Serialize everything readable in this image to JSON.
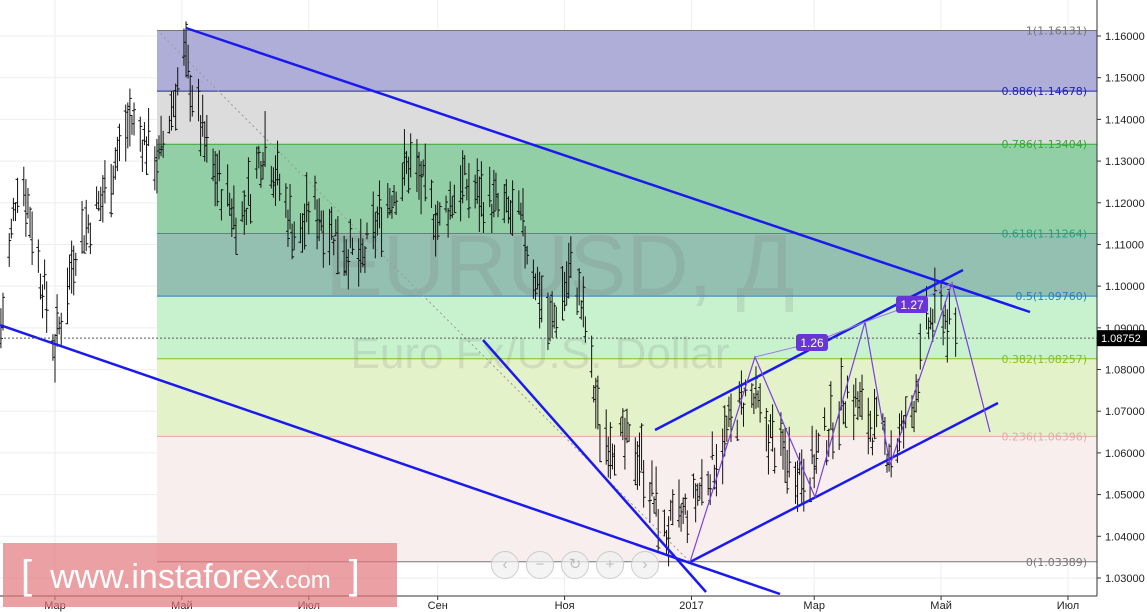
{
  "chart_data": {
    "type": "candlestick",
    "symbol_title": "EURUSD, Д",
    "symbol_subtitle": "Euro Fx/U.S. Dollar",
    "ylim": [
      1.025,
      1.168
    ],
    "y_ticks": [
      "1.16000",
      "1.15000",
      "1.14000",
      "1.13000",
      "1.12000",
      "1.11000",
      "1.10000",
      "1.09000",
      "1.08000",
      "1.07000",
      "1.06000",
      "1.05000",
      "1.04000",
      "1.03000"
    ],
    "x_ticks": [
      {
        "label": "Мар",
        "date": "2016-03-01"
      },
      {
        "label": "Май",
        "date": "2016-05-01"
      },
      {
        "label": "Июл",
        "date": "2016-07-01"
      },
      {
        "label": "Сен",
        "date": "2016-09-01"
      },
      {
        "label": "Ноя",
        "date": "2016-11-01"
      },
      {
        "label": "2017",
        "date": "2017-01-01"
      },
      {
        "label": "Мар",
        "date": "2017-03-01"
      },
      {
        "label": "Май",
        "date": "2017-05-01"
      },
      {
        "label": "Июл",
        "date": "2017-07-01"
      }
    ],
    "current_price": "1.08752",
    "price_path": [
      [
        "2016-02-04",
        1.09
      ],
      [
        "2016-02-13",
        1.13
      ],
      [
        "2016-03-01",
        1.085
      ],
      [
        "2016-03-11",
        1.11
      ],
      [
        "2016-03-23",
        1.12
      ],
      [
        "2016-04-06",
        1.14
      ],
      [
        "2016-04-20",
        1.13
      ],
      [
        "2016-05-02",
        1.155
      ],
      [
        "2016-05-14",
        1.13
      ],
      [
        "2016-05-29",
        1.115
      ],
      [
        "2016-06-10",
        1.135
      ],
      [
        "2016-06-26",
        1.11
      ],
      [
        "2016-07-02",
        1.12
      ],
      [
        "2016-07-26",
        1.105
      ],
      [
        "2016-08-07",
        1.12
      ],
      [
        "2016-08-19",
        1.13
      ],
      [
        "2016-09-02",
        1.115
      ],
      [
        "2016-09-12",
        1.125
      ],
      [
        "2016-10-11",
        1.115
      ],
      [
        "2016-10-25",
        1.09
      ],
      [
        "2016-11-05",
        1.105
      ],
      [
        "2016-11-11",
        1.09
      ],
      [
        "2016-11-18",
        1.065
      ],
      [
        "2016-12-07",
        1.06
      ],
      [
        "2016-12-19",
        1.04
      ],
      [
        "2017-01-01",
        1.047
      ],
      [
        "2017-01-14",
        1.06
      ],
      [
        "2017-01-28",
        1.075
      ],
      [
        "2017-02-12",
        1.06
      ],
      [
        "2017-02-26",
        1.055
      ],
      [
        "2017-03-17",
        1.075
      ],
      [
        "2017-03-31",
        1.065
      ],
      [
        "2017-04-08",
        1.06
      ],
      [
        "2017-04-17",
        1.07
      ],
      [
        "2017-04-24",
        1.09
      ],
      [
        "2017-05-01",
        1.095
      ],
      [
        "2017-05-08",
        1.087
      ]
    ],
    "fib_levels": [
      {
        "label": "1(1.16131)",
        "value": 1.16131,
        "color": "#777777",
        "fill": "#aeaed8"
      },
      {
        "label": "0.886(1.14678)",
        "value": 1.14678,
        "color": "#2222bb",
        "fill": "#dcdcdc"
      },
      {
        "label": "0.786(1.13404)",
        "value": 1.13404,
        "color": "#33aa33",
        "fill": "#93cfa6"
      },
      {
        "label": "0.618(1.11264)",
        "value": 1.11264,
        "color": "#2a9f7a",
        "fill": "#93c0b0"
      },
      {
        "label": "0.5(1.09760)",
        "value": 1.0976,
        "color": "#2b7fbf",
        "fill": "#c8f2ce"
      },
      {
        "label": "0.382(1.08257)",
        "value": 1.08257,
        "color": "#88c020",
        "fill": "#e3f2c8"
      },
      {
        "label": "0.236(1.06396)",
        "value": 1.06396,
        "color": "#e8a8a8",
        "fill": "#f9eeee"
      },
      {
        "label": "0(1.03389)",
        "value": 1.03389,
        "color": "#777777",
        "fill": null
      }
    ],
    "pattern_labels": [
      "1.26",
      "1.27"
    ]
  },
  "watermark": {
    "bracket_left": "[",
    "text": "www.instaforex",
    "suffix": ".com",
    "bracket_right": "]"
  },
  "nav": [
    "‹",
    "−",
    "↻",
    "+",
    "›"
  ]
}
